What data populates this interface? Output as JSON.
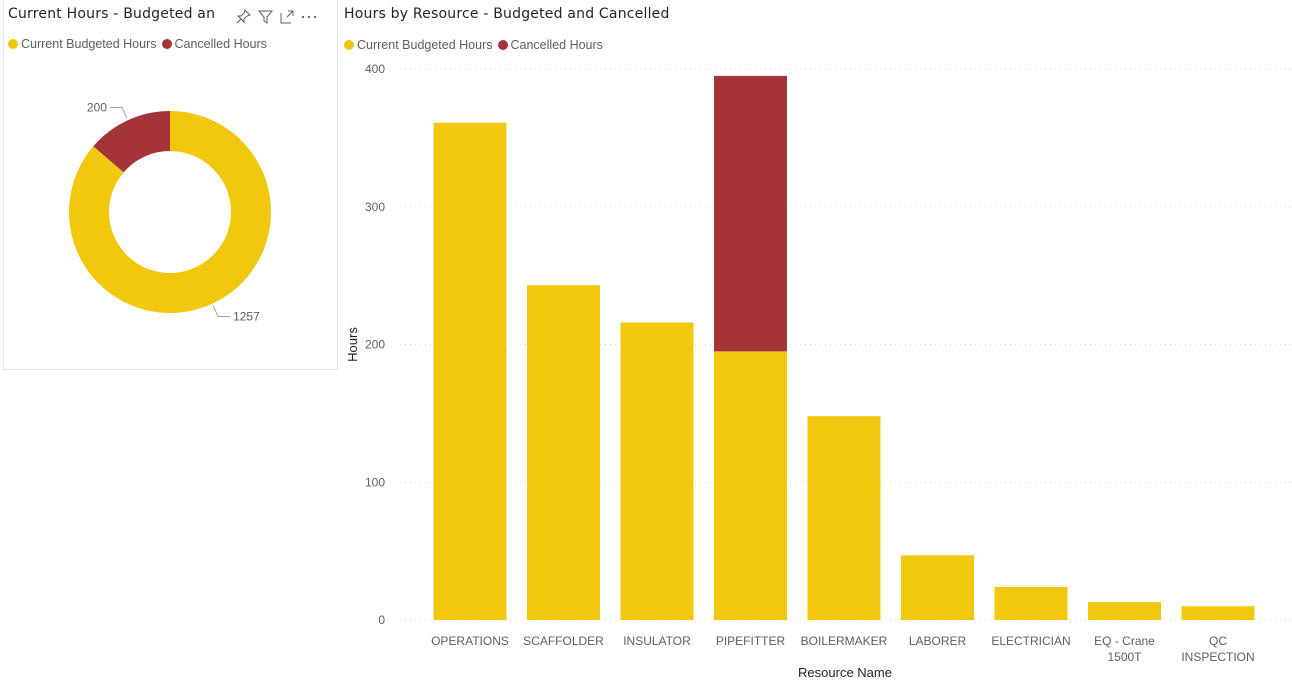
{
  "colors": {
    "budgeted": "#F2C80F",
    "cancelled": "#A4343A",
    "grid": "#d9d9d9",
    "axis_text": "#605e5c"
  },
  "donut_panel": {
    "title": "Current Hours - Budgeted an",
    "header_icons": [
      "pin-icon",
      "filter-icon",
      "focus-mode-icon",
      "more-options-icon"
    ],
    "legend": [
      {
        "label": "Current Budgeted Hours",
        "color": "#F2C80F"
      },
      {
        "label": "Cancelled Hours",
        "color": "#A4343A"
      }
    ]
  },
  "bar_panel": {
    "title": "Hours by Resource - Budgeted and Cancelled",
    "legend": [
      {
        "label": "Current Budgeted Hours",
        "color": "#F2C80F"
      },
      {
        "label": "Cancelled Hours",
        "color": "#A4343A"
      }
    ]
  },
  "chart_data": [
    {
      "type": "pie",
      "subtype": "donut",
      "title": "Current Hours - Budgeted and Cancelled",
      "categories": [
        "Current Budgeted Hours",
        "Cancelled Hours"
      ],
      "values": [
        1257,
        200
      ],
      "labels": [
        "1257",
        "200"
      ],
      "legend": "top-left"
    },
    {
      "type": "bar",
      "stacked": true,
      "title": "Hours by Resource - Budgeted and Cancelled",
      "xlabel": "Resource Name",
      "ylabel": "Hours",
      "ylim": [
        0,
        400
      ],
      "yticks": [
        0,
        100,
        200,
        300,
        400
      ],
      "grid": true,
      "legend": "top-left",
      "categories": [
        "OPERATIONS",
        "SCAFFOLDER",
        "INSULATOR",
        "PIPEFITTER",
        "BOILERMAKER",
        "LABORER",
        "ELECTRICIAN",
        "EQ - Crane 1500T",
        "QC INSPECTION"
      ],
      "category_lines": [
        [
          "OPERATIONS"
        ],
        [
          "SCAFFOLDER"
        ],
        [
          "INSULATOR"
        ],
        [
          "PIPEFITTER"
        ],
        [
          "BOILERMAKER"
        ],
        [
          "LABORER"
        ],
        [
          "ELECTRICIAN"
        ],
        [
          "EQ - Crane",
          "1500T"
        ],
        [
          "QC",
          "INSPECTION"
        ]
      ],
      "series": [
        {
          "name": "Current Budgeted Hours",
          "values": [
            361,
            243,
            216,
            195,
            148,
            47,
            24,
            13,
            10
          ]
        },
        {
          "name": "Cancelled Hours",
          "values": [
            0,
            0,
            0,
            200,
            0,
            0,
            0,
            0,
            0
          ]
        }
      ]
    }
  ]
}
